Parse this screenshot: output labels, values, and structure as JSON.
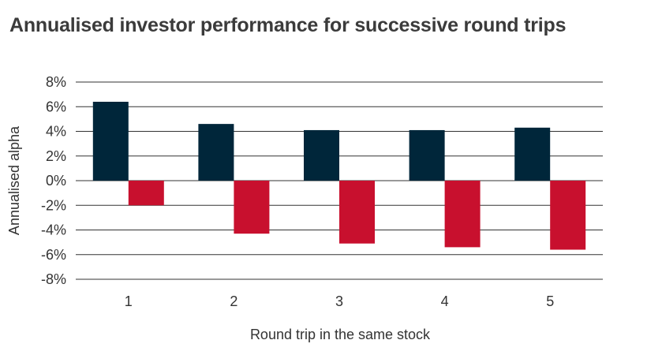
{
  "chart_data": {
    "type": "bar",
    "title": "Annualised investor performance for successive round trips",
    "xlabel": "Round trip in the same stock",
    "ylabel": "Annualised alpha",
    "categories": [
      "1",
      "2",
      "3",
      "4",
      "5"
    ],
    "series": [
      {
        "values": [
          6.4,
          4.6,
          4.1,
          4.1,
          4.3
        ],
        "color": "#00263a"
      },
      {
        "values": [
          -2.0,
          -4.3,
          -5.1,
          -5.4,
          -5.6
        ],
        "color": "#c8102e"
      }
    ],
    "ylim": [
      -8,
      8
    ],
    "yticks": [
      "8%",
      "6%",
      "4%",
      "2%",
      "0%",
      "-2%",
      "-4%",
      "-6%",
      "-8%"
    ],
    "ytick_values": [
      8,
      6,
      4,
      2,
      0,
      -2,
      -4,
      -6,
      -8
    ],
    "grid": true,
    "grid_color": "#333333"
  }
}
